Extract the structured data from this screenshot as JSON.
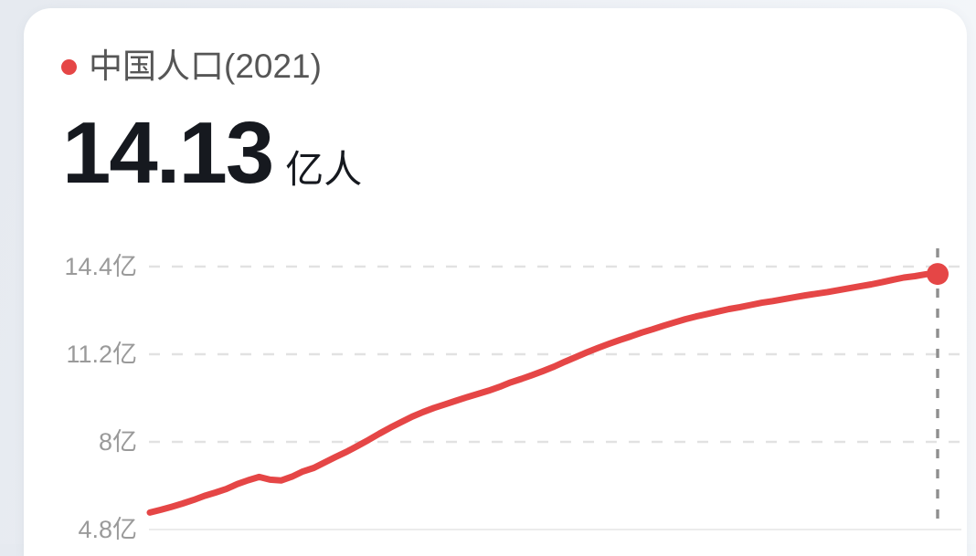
{
  "header": {
    "legend_label": "中国人口(2021)",
    "value": "14.13",
    "unit": "亿人"
  },
  "colors": {
    "accent_red": "#e54646",
    "page_bg": "#eaedf2",
    "card_bg": "#ffffff",
    "title_gray": "#565656",
    "number_dark": "#16191f",
    "axis_gray": "#9a9a9a",
    "grid_light": "#e2e2e2",
    "baseline_light": "#ececec",
    "vline_gray": "#8f8f8f"
  },
  "chart_data": {
    "type": "line",
    "title": "中国人口(2021)",
    "series_name": "中国人口",
    "unit": "亿人",
    "current_value": 14.13,
    "current_year": 2021,
    "xlim": [
      1949,
      2021
    ],
    "ylim": [
      4.8,
      14.4
    ],
    "grid": "horizontal dashed, solid baseline, no x-axis labels",
    "legend_position": "top-left bullet",
    "marker": "red endpoint dot with gray dashed vertical line",
    "yticks": [
      {
        "value": 14.4,
        "label": "14.4亿"
      },
      {
        "value": 11.2,
        "label": "11.2亿"
      },
      {
        "value": 8,
        "label": "8亿"
      },
      {
        "value": 4.8,
        "label": "4.8亿"
      }
    ],
    "years": [
      1949,
      1950,
      1951,
      1952,
      1953,
      1954,
      1955,
      1956,
      1957,
      1958,
      1959,
      1960,
      1961,
      1962,
      1963,
      1964,
      1965,
      1966,
      1967,
      1968,
      1969,
      1970,
      1971,
      1972,
      1973,
      1974,
      1975,
      1976,
      1977,
      1978,
      1979,
      1980,
      1981,
      1982,
      1983,
      1984,
      1985,
      1986,
      1987,
      1988,
      1989,
      1990,
      1991,
      1992,
      1993,
      1994,
      1995,
      1996,
      1997,
      1998,
      1999,
      2000,
      2001,
      2002,
      2003,
      2004,
      2005,
      2006,
      2007,
      2008,
      2009,
      2010,
      2011,
      2012,
      2013,
      2014,
      2015,
      2016,
      2017,
      2018,
      2019,
      2020,
      2021
    ],
    "values": [
      5.42,
      5.52,
      5.63,
      5.75,
      5.88,
      6.03,
      6.15,
      6.28,
      6.46,
      6.6,
      6.72,
      6.62,
      6.59,
      6.73,
      6.92,
      7.05,
      7.25,
      7.45,
      7.64,
      7.85,
      8.07,
      8.3,
      8.52,
      8.72,
      8.92,
      9.09,
      9.24,
      9.37,
      9.5,
      9.63,
      9.75,
      9.87,
      10.01,
      10.17,
      10.3,
      10.44,
      10.59,
      10.75,
      10.93,
      11.1,
      11.27,
      11.43,
      11.58,
      11.72,
      11.85,
      11.99,
      12.11,
      12.24,
      12.36,
      12.48,
      12.58,
      12.67,
      12.76,
      12.85,
      12.92,
      13.0,
      13.08,
      13.14,
      13.21,
      13.28,
      13.35,
      13.41,
      13.47,
      13.54,
      13.61,
      13.68,
      13.75,
      13.83,
      13.92,
      14.0,
      14.05,
      14.12,
      14.13
    ]
  }
}
